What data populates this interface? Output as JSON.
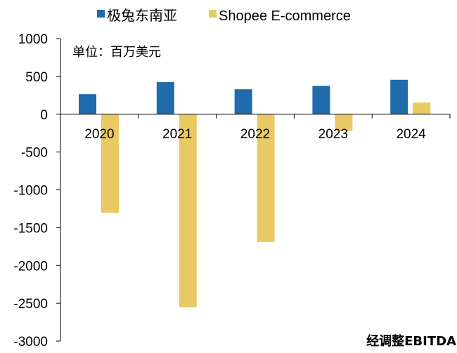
{
  "chart_data": {
    "type": "bar",
    "categories": [
      "2020",
      "2021",
      "2022",
      "2023",
      "2024"
    ],
    "series": [
      {
        "name": "极兔东南亚",
        "color": "#1f6bab",
        "values": [
          265,
          425,
          330,
          375,
          455
        ]
      },
      {
        "name": "Shopee E-commerce",
        "color": "#e8c964",
        "values": [
          -1305,
          -2555,
          -1690,
          -220,
          155
        ]
      }
    ],
    "ylim": [
      -3000,
      1000
    ],
    "yticks": [
      1000,
      500,
      0,
      -500,
      -1000,
      -1500,
      -2000,
      -2500,
      -3000
    ],
    "unit_note": "单位：百万美元",
    "footer_label": "经调整EBITDA",
    "legend_position": "top",
    "grid": false
  }
}
